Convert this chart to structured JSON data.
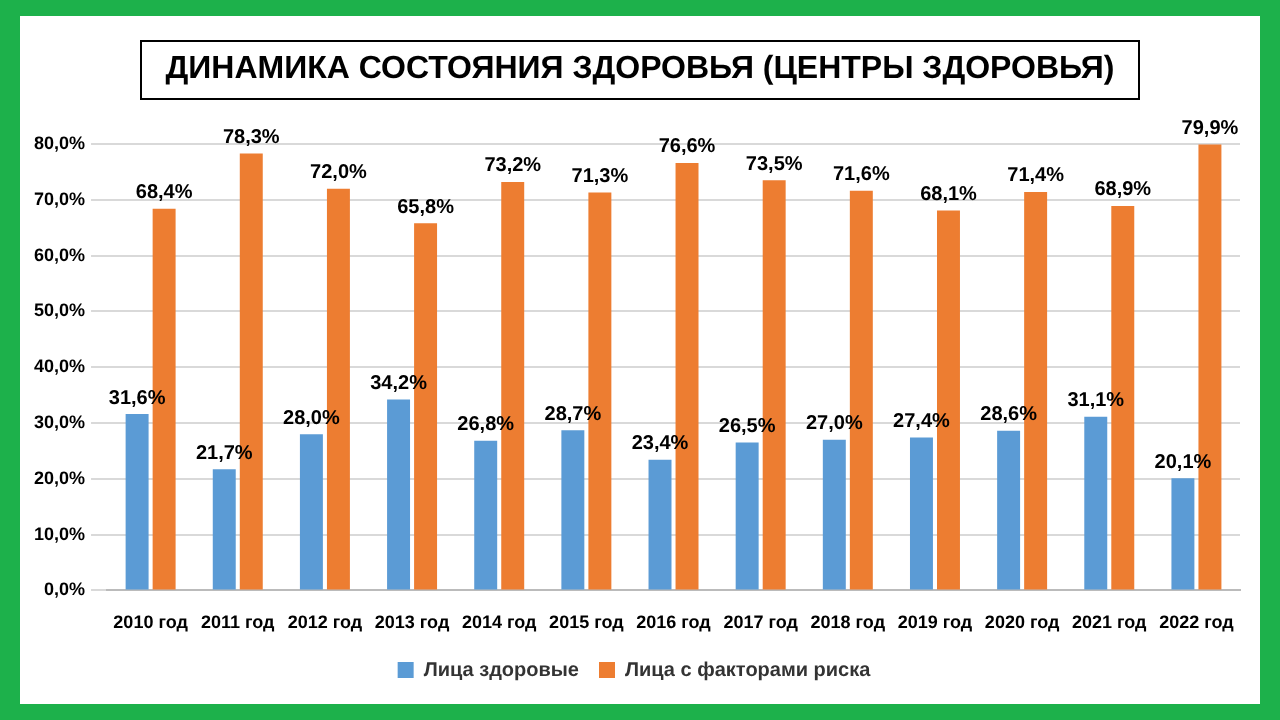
{
  "chart_data": {
    "type": "bar",
    "title": "ДИНАМИКА СОСТОЯНИЯ ЗДОРОВЬЯ (ЦЕНТРЫ ЗДОРОВЬЯ)",
    "categories": [
      "2010 год",
      "2011 год",
      "2012 год",
      "2013 год",
      "2014 год",
      "2015 год",
      "2016 год",
      "2017 год",
      "2018 год",
      "2019 год",
      "2020 год",
      "2021 год",
      "2022 год"
    ],
    "series": [
      {
        "name": "Лица здоровые",
        "color": "#5b9bd5",
        "values": [
          31.6,
          21.7,
          28.0,
          34.2,
          26.8,
          28.7,
          23.4,
          26.5,
          27.0,
          27.4,
          28.6,
          31.1,
          20.1
        ],
        "value_labels": [
          "31,6%",
          "21,7%",
          "28,0%",
          "34,2%",
          "26,8%",
          "28,7%",
          "23,4%",
          "26,5%",
          "27,0%",
          "27,4%",
          "28,6%",
          "31,1%",
          "20,1%"
        ]
      },
      {
        "name": "Лица с факторами риска",
        "color": "#ed7d31",
        "values": [
          68.4,
          78.3,
          72.0,
          65.8,
          73.2,
          71.3,
          76.6,
          73.5,
          71.6,
          68.1,
          71.4,
          68.9,
          79.9
        ],
        "value_labels": [
          "68,4%",
          "78,3%",
          "72,0%",
          "65,8%",
          "73,2%",
          "71,3%",
          "76,6%",
          "73,5%",
          "71,6%",
          "68,1%",
          "71,4%",
          "68,9%",
          "79,9%"
        ]
      }
    ],
    "ylim": [
      0,
      80
    ],
    "yticks": [
      {
        "value": 0,
        "label": "0,0%"
      },
      {
        "value": 10,
        "label": "10,0%"
      },
      {
        "value": 20,
        "label": "20,0%"
      },
      {
        "value": 30,
        "label": "30,0%"
      },
      {
        "value": 40,
        "label": "40,0%"
      },
      {
        "value": 50,
        "label": "50,0%"
      },
      {
        "value": 60,
        "label": "60,0%"
      },
      {
        "value": 70,
        "label": "70,0%"
      },
      {
        "value": 80,
        "label": "80,0%"
      }
    ],
    "grid": "y",
    "legend": "bottom"
  }
}
